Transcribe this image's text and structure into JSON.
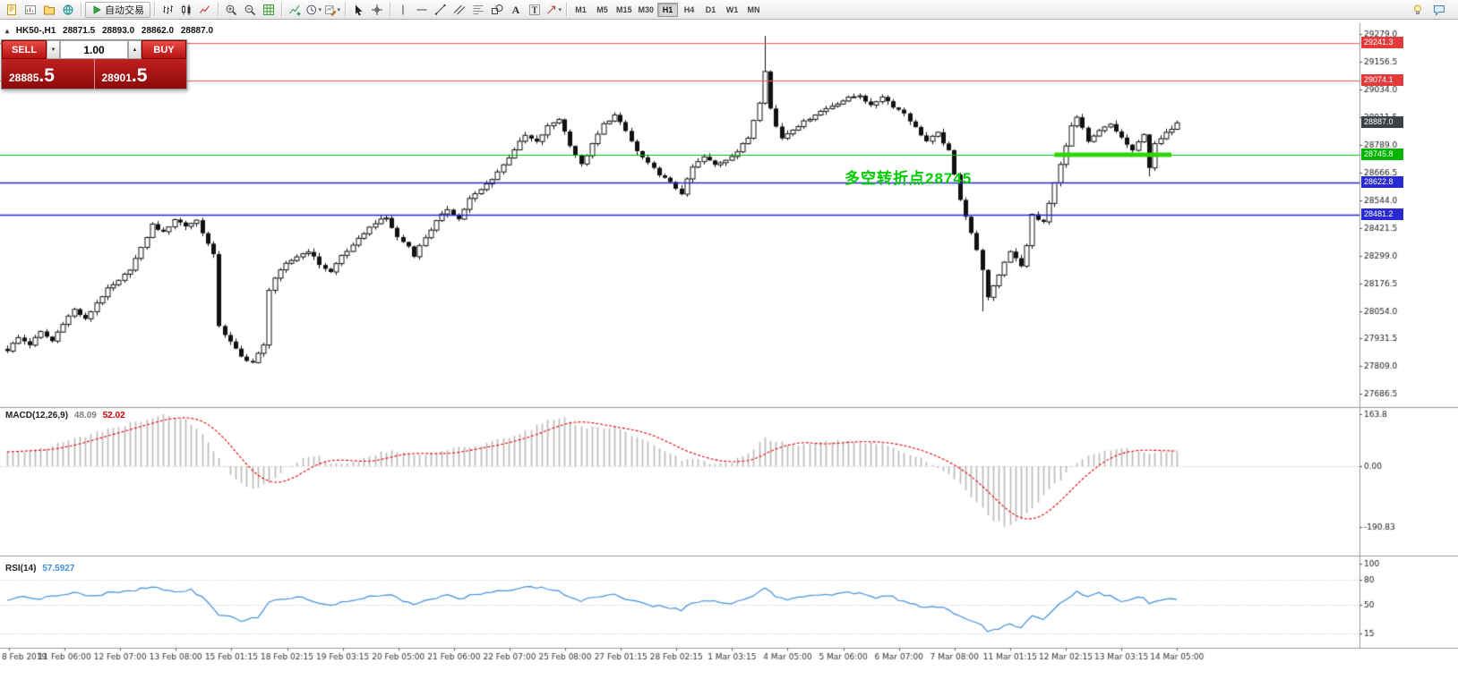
{
  "toolbar": {
    "groups": [
      {
        "items": [
          {
            "name": "new-order-icon"
          },
          {
            "name": "new-chart-icon"
          },
          {
            "name": "profiles-icon"
          },
          {
            "name": "market-watch-icon"
          }
        ]
      },
      {
        "items": [
          {
            "name": "autotrading-button",
            "label": "自动交易"
          }
        ]
      },
      {
        "items": [
          {
            "name": "bar-chart-icon"
          },
          {
            "name": "candlestick-chart-icon"
          },
          {
            "name": "line-chart-icon"
          }
        ]
      },
      {
        "items": [
          {
            "name": "zoom-in-icon"
          },
          {
            "name": "zoom-out-icon"
          },
          {
            "name": "grid-icon"
          }
        ]
      },
      {
        "items": [
          {
            "name": "indicators-icon"
          },
          {
            "name": "periods-icon",
            "dropdown": true
          },
          {
            "name": "templates-icon",
            "dropdown": true
          }
        ]
      },
      {
        "items": [
          {
            "name": "cursor-icon"
          },
          {
            "name": "crosshair-icon"
          }
        ]
      },
      {
        "items": [
          {
            "name": "vertical-line-icon"
          },
          {
            "name": "horizontal-line-icon"
          },
          {
            "name": "trendline-icon"
          },
          {
            "name": "channel-icon"
          },
          {
            "name": "fibonacci-icon"
          },
          {
            "name": "shapes-icon"
          },
          {
            "name": "text-icon"
          },
          {
            "name": "label-icon"
          },
          {
            "name": "arrow-icon",
            "dropdown": true
          }
        ]
      }
    ],
    "timeframes": {
      "options": [
        "M1",
        "M5",
        "M15",
        "M30",
        "H1",
        "H4",
        "D1",
        "W1",
        "MN"
      ],
      "active": "H1"
    },
    "right_items": [
      {
        "name": "lightbulb-icon"
      },
      {
        "name": "comments-icon"
      }
    ]
  },
  "chart": {
    "header": {
      "symbol_period": "HK50-,H1",
      "open": "28871.5",
      "high": "28893.0",
      "low": "28862.0",
      "close": "28887.0"
    },
    "trade_panel": {
      "sell_label": "SELL",
      "buy_label": "BUY",
      "volume": "1.00",
      "sell_price_main": "28885",
      "sell_price_big": ".5",
      "buy_price_main": "28901",
      "buy_price_big": ".5"
    },
    "annotation": {
      "text": "多空转折点28745",
      "color": "#00cc00"
    },
    "hlines": [
      {
        "price": 29241.3,
        "color": "#ff5252",
        "width": 1.2
      },
      {
        "price": 29074.1,
        "color": "#ff5252",
        "width": 1.2
      },
      {
        "price": 28745.8,
        "color": "#00c400",
        "width": 1.2
      },
      {
        "price": 28622.8,
        "color": "#2727d8",
        "width": 1.7
      },
      {
        "price": 28481.2,
        "color": "#2727d8",
        "width": 1.7
      }
    ],
    "green_segment": {
      "price": 28745.8,
      "from_bar": 188,
      "to_bar": 209,
      "color": "#2fd500",
      "width": 5
    },
    "price_axis": {
      "ticks": [
        "29279.0",
        "29156.5",
        "29034.0",
        "28911.5",
        "28789.0",
        "28666.5",
        "28544.0",
        "28421.5",
        "28299.0",
        "28176.5",
        "28054.0",
        "27931.5",
        "27809.0",
        "27686.5"
      ],
      "badges": [
        {
          "text": "29241.3",
          "bg": "#e23b3b",
          "fg": "#ffffff"
        },
        {
          "text": "29074.1",
          "bg": "#e23b3b",
          "fg": "#ffffff"
        },
        {
          "text": "28887.0",
          "bg": "#3c4048",
          "fg": "#ffffff"
        },
        {
          "text": "28745.8",
          "bg": "#00b400",
          "fg": "#ffffff"
        },
        {
          "text": "28622.8",
          "bg": "#2a2ad2",
          "fg": "#ffffff"
        },
        {
          "text": "28481.2",
          "bg": "#2a2ad2",
          "fg": "#ffffff"
        }
      ]
    },
    "time_axis": {
      "labels": [
        "8 Feb 2019",
        "11 Feb 06:00",
        "12 Feb 07:00",
        "13 Feb 08:00",
        "15 Feb 01:15",
        "18 Feb 02:15",
        "19 Feb 03:15",
        "20 Feb 05:00",
        "21 Feb 06:00",
        "22 Feb 07:00",
        "25 Feb 08:00",
        "27 Feb 01:15",
        "28 Feb 02:15",
        "1 Mar 03:15",
        "4 Mar 05:00",
        "5 Mar 06:00",
        "6 Mar 07:00",
        "7 Mar 08:00",
        "11 Mar 01:15",
        "12 Mar 02:15",
        "13 Mar 03:15",
        "14 Mar 05:00"
      ]
    }
  },
  "indicators": {
    "macd": {
      "name": "MACD(12,26,9)",
      "value_main": "48.09",
      "value_signal": "52.02",
      "axis": [
        {
          "text": "163.8",
          "value": 163.8
        },
        {
          "text": "0.00",
          "value": 0
        },
        {
          "text": "-190.83",
          "value": -190.83
        }
      ],
      "histogram_color": "#b9b9b9",
      "signal_color": "#e60000",
      "anchors": [
        [
          0,
          45
        ],
        [
          6,
          55
        ],
        [
          12,
          85
        ],
        [
          18,
          115
        ],
        [
          24,
          145
        ],
        [
          28,
          163
        ],
        [
          32,
          145
        ],
        [
          35,
          100
        ],
        [
          38,
          20
        ],
        [
          41,
          -45
        ],
        [
          44,
          -70
        ],
        [
          47,
          -50
        ],
        [
          50,
          -5
        ],
        [
          53,
          25
        ],
        [
          56,
          28
        ],
        [
          58,
          12
        ],
        [
          61,
          8
        ],
        [
          64,
          22
        ],
        [
          67,
          42
        ],
        [
          70,
          48
        ],
        [
          73,
          32
        ],
        [
          76,
          38
        ],
        [
          79,
          52
        ],
        [
          82,
          58
        ],
        [
          85,
          68
        ],
        [
          88,
          82
        ],
        [
          91,
          98
        ],
        [
          94,
          118
        ],
        [
          97,
          145
        ],
        [
          100,
          150
        ],
        [
          103,
          125
        ],
        [
          106,
          118
        ],
        [
          109,
          122
        ],
        [
          112,
          98
        ],
        [
          115,
          72
        ],
        [
          118,
          48
        ],
        [
          121,
          22
        ],
        [
          124,
          18
        ],
        [
          127,
          8
        ],
        [
          130,
          14
        ],
        [
          133,
          38
        ],
        [
          136,
          88
        ],
        [
          138,
          80
        ],
        [
          140,
          68
        ],
        [
          142,
          66
        ],
        [
          145,
          72
        ],
        [
          148,
          78
        ],
        [
          151,
          80
        ],
        [
          154,
          74
        ],
        [
          157,
          70
        ],
        [
          160,
          52
        ],
        [
          163,
          32
        ],
        [
          166,
          8
        ],
        [
          169,
          -25
        ],
        [
          172,
          -75
        ],
        [
          175,
          -135
        ],
        [
          177,
          -170
        ],
        [
          179,
          -188
        ],
        [
          181,
          -178
        ],
        [
          183,
          -150
        ],
        [
          185,
          -112
        ],
        [
          187,
          -75
        ],
        [
          189,
          -40
        ],
        [
          191,
          -5
        ],
        [
          193,
          22
        ],
        [
          196,
          45
        ],
        [
          199,
          56
        ],
        [
          202,
          50
        ],
        [
          205,
          44
        ],
        [
          208,
          50
        ],
        [
          210,
          48
        ]
      ]
    },
    "rsi": {
      "name": "RSI(14)",
      "value": "57.5927",
      "axis": [
        {
          "text": "100",
          "value": 100
        },
        {
          "text": "80",
          "value": 80
        },
        {
          "text": "50",
          "value": 50
        },
        {
          "text": "15",
          "value": 15
        }
      ],
      "levels": [
        80,
        50,
        15
      ],
      "line_color": "#3f8fde",
      "anchors": [
        [
          0,
          55
        ],
        [
          3,
          61
        ],
        [
          6,
          57
        ],
        [
          9,
          62
        ],
        [
          12,
          64
        ],
        [
          15,
          60
        ],
        [
          18,
          64
        ],
        [
          21,
          66
        ],
        [
          24,
          69
        ],
        [
          27,
          71
        ],
        [
          30,
          66
        ],
        [
          33,
          68
        ],
        [
          36,
          54
        ],
        [
          38,
          37
        ],
        [
          40,
          35
        ],
        [
          42,
          31
        ],
        [
          45,
          34
        ],
        [
          47,
          54
        ],
        [
          50,
          57
        ],
        [
          53,
          60
        ],
        [
          56,
          52
        ],
        [
          58,
          49
        ],
        [
          61,
          55
        ],
        [
          64,
          58
        ],
        [
          67,
          62
        ],
        [
          69,
          63
        ],
        [
          71,
          55
        ],
        [
          73,
          50
        ],
        [
          76,
          57
        ],
        [
          79,
          62
        ],
        [
          81,
          57
        ],
        [
          83,
          61
        ],
        [
          86,
          64
        ],
        [
          89,
          67
        ],
        [
          91,
          69
        ],
        [
          94,
          71
        ],
        [
          97,
          70
        ],
        [
          99,
          67
        ],
        [
          101,
          59
        ],
        [
          103,
          54
        ],
        [
          105,
          59
        ],
        [
          107,
          62
        ],
        [
          109,
          64
        ],
        [
          111,
          57
        ],
        [
          113,
          53
        ],
        [
          115,
          50
        ],
        [
          118,
          47
        ],
        [
          121,
          44
        ],
        [
          123,
          52
        ],
        [
          126,
          55
        ],
        [
          129,
          51
        ],
        [
          132,
          56
        ],
        [
          134,
          62
        ],
        [
          136,
          70
        ],
        [
          138,
          60
        ],
        [
          140,
          56
        ],
        [
          142,
          59
        ],
        [
          145,
          61
        ],
        [
          148,
          63
        ],
        [
          151,
          65
        ],
        [
          154,
          63
        ],
        [
          156,
          59
        ],
        [
          158,
          62
        ],
        [
          161,
          54
        ],
        [
          163,
          50
        ],
        [
          165,
          46
        ],
        [
          167,
          48
        ],
        [
          169,
          43
        ],
        [
          171,
          36
        ],
        [
          173,
          30
        ],
        [
          175,
          25
        ],
        [
          176,
          18
        ],
        [
          178,
          21
        ],
        [
          180,
          26
        ],
        [
          182,
          22
        ],
        [
          184,
          36
        ],
        [
          186,
          33
        ],
        [
          188,
          44
        ],
        [
          190,
          57
        ],
        [
          192,
          66
        ],
        [
          194,
          61
        ],
        [
          196,
          64
        ],
        [
          198,
          61
        ],
        [
          200,
          55
        ],
        [
          202,
          57
        ],
        [
          204,
          60
        ],
        [
          205,
          52
        ],
        [
          206,
          55
        ],
        [
          208,
          58
        ],
        [
          210,
          57.6
        ]
      ]
    }
  },
  "chart_data": {
    "type": "candlestick",
    "symbol": "HK50-",
    "timeframe": "H1",
    "bars": 211,
    "current_ohlc": {
      "open": 28871.5,
      "high": 28893.0,
      "low": 28862.0,
      "close": 28887.0
    },
    "bid": 28885.5,
    "ask": 28901.5,
    "y_range": [
      27640,
      29320
    ],
    "close_anchors": [
      [
        0,
        27880
      ],
      [
        2,
        27935
      ],
      [
        4,
        27905
      ],
      [
        6,
        27960
      ],
      [
        8,
        27920
      ],
      [
        10,
        28000
      ],
      [
        12,
        28060
      ],
      [
        14,
        28015
      ],
      [
        16,
        28090
      ],
      [
        18,
        28150
      ],
      [
        20,
        28185
      ],
      [
        22,
        28240
      ],
      [
        24,
        28330
      ],
      [
        26,
        28435
      ],
      [
        28,
        28400
      ],
      [
        30,
        28460
      ],
      [
        32,
        28430
      ],
      [
        34,
        28455
      ],
      [
        36,
        28350
      ],
      [
        37,
        28300
      ],
      [
        38,
        27990
      ],
      [
        39,
        27950
      ],
      [
        40,
        27915
      ],
      [
        42,
        27850
      ],
      [
        44,
        27825
      ],
      [
        46,
        27900
      ],
      [
        47,
        28150
      ],
      [
        48,
        28200
      ],
      [
        50,
        28260
      ],
      [
        52,
        28295
      ],
      [
        54,
        28320
      ],
      [
        56,
        28260
      ],
      [
        58,
        28225
      ],
      [
        60,
        28300
      ],
      [
        62,
        28340
      ],
      [
        64,
        28400
      ],
      [
        66,
        28445
      ],
      [
        68,
        28465
      ],
      [
        70,
        28380
      ],
      [
        72,
        28340
      ],
      [
        73,
        28300
      ],
      [
        75,
        28380
      ],
      [
        77,
        28450
      ],
      [
        79,
        28505
      ],
      [
        81,
        28460
      ],
      [
        83,
        28550
      ],
      [
        85,
        28590
      ],
      [
        87,
        28640
      ],
      [
        89,
        28700
      ],
      [
        91,
        28770
      ],
      [
        93,
        28830
      ],
      [
        95,
        28800
      ],
      [
        97,
        28870
      ],
      [
        99,
        28905
      ],
      [
        101,
        28790
      ],
      [
        103,
        28700
      ],
      [
        105,
        28790
      ],
      [
        107,
        28880
      ],
      [
        109,
        28920
      ],
      [
        111,
        28850
      ],
      [
        113,
        28760
      ],
      [
        115,
        28705
      ],
      [
        117,
        28660
      ],
      [
        119,
        28620
      ],
      [
        121,
        28575
      ],
      [
        123,
        28690
      ],
      [
        125,
        28735
      ],
      [
        127,
        28700
      ],
      [
        129,
        28725
      ],
      [
        131,
        28760
      ],
      [
        133,
        28820
      ],
      [
        135,
        28980
      ],
      [
        136,
        29120
      ],
      [
        137,
        28950
      ],
      [
        138,
        28870
      ],
      [
        139,
        28820
      ],
      [
        141,
        28860
      ],
      [
        143,
        28890
      ],
      [
        145,
        28925
      ],
      [
        147,
        28950
      ],
      [
        149,
        28975
      ],
      [
        151,
        28995
      ],
      [
        153,
        29010
      ],
      [
        155,
        28960
      ],
      [
        157,
        29005
      ],
      [
        159,
        28960
      ],
      [
        161,
        28930
      ],
      [
        163,
        28865
      ],
      [
        165,
        28805
      ],
      [
        167,
        28840
      ],
      [
        169,
        28760
      ],
      [
        171,
        28550
      ],
      [
        173,
        28400
      ],
      [
        175,
        28240
      ],
      [
        176,
        28110
      ],
      [
        177,
        28160
      ],
      [
        178,
        28215
      ],
      [
        179,
        28270
      ],
      [
        180,
        28320
      ],
      [
        181,
        28290
      ],
      [
        182,
        28255
      ],
      [
        183,
        28340
      ],
      [
        184,
        28480
      ],
      [
        185,
        28460
      ],
      [
        186,
        28445
      ],
      [
        187,
        28530
      ],
      [
        188,
        28620
      ],
      [
        189,
        28700
      ],
      [
        190,
        28790
      ],
      [
        191,
        28870
      ],
      [
        192,
        28910
      ],
      [
        193,
        28860
      ],
      [
        194,
        28800
      ],
      [
        196,
        28850
      ],
      [
        198,
        28880
      ],
      [
        200,
        28820
      ],
      [
        202,
        28760
      ],
      [
        204,
        28840
      ],
      [
        205,
        28690
      ],
      [
        206,
        28790
      ],
      [
        208,
        28840
      ],
      [
        210,
        28887
      ]
    ],
    "wick_overrides": {
      "136": {
        "high": 29272
      },
      "175": {
        "low": 28052
      },
      "205": {
        "low": 28650
      }
    }
  }
}
